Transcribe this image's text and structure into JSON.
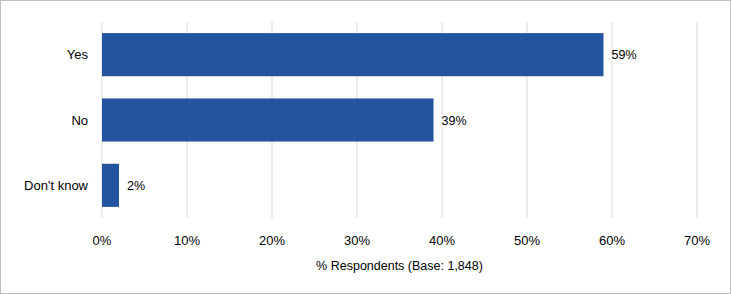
{
  "chart_data": {
    "type": "bar",
    "orientation": "horizontal",
    "categories": [
      "Yes",
      "No",
      "Don't know"
    ],
    "values": [
      59,
      39,
      2
    ],
    "value_labels": [
      "59%",
      "39%",
      "2%"
    ],
    "data_labels": true,
    "color": "#2454a0",
    "x_label": "% Respondents (Base: 1,848)",
    "xlim": [
      0,
      70
    ],
    "xticks": [
      {
        "value": 0,
        "label": "0%"
      },
      {
        "value": 10,
        "label": "10%"
      },
      {
        "value": 20,
        "label": "20%"
      },
      {
        "value": 30,
        "label": "30%"
      },
      {
        "value": 40,
        "label": "40%"
      },
      {
        "value": 50,
        "label": "50%"
      },
      {
        "value": 60,
        "label": "60%"
      },
      {
        "value": 70,
        "label": "70%"
      }
    ],
    "grid": true
  }
}
